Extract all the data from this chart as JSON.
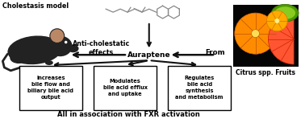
{
  "background_color": "#ffffff",
  "cholestasis_label": "Cholestasis model",
  "auraptene_label": "Auraptene",
  "from_label": "From",
  "citrus_label": "Citrus spp. Fruits",
  "anti_label": "Anti-cholestatic\neffects",
  "footer_label": "All in association with FXR activation",
  "box1_text": "increases\nbile flow and\nbiliary bile acid\noutput",
  "box2_text": "Modulates\nbile acid efflux\nand uptake",
  "box3_text": "Regulates\nbile acid\nsynthesis\nand metabolism",
  "figsize": [
    3.78,
    1.63
  ],
  "dpi": 100,
  "struct_color": "#888888",
  "arrow_color": "#111111",
  "mouse_body_color": "#222222",
  "mouse_ear_color": "#bb8866",
  "fruit_bg_color": "#050505"
}
